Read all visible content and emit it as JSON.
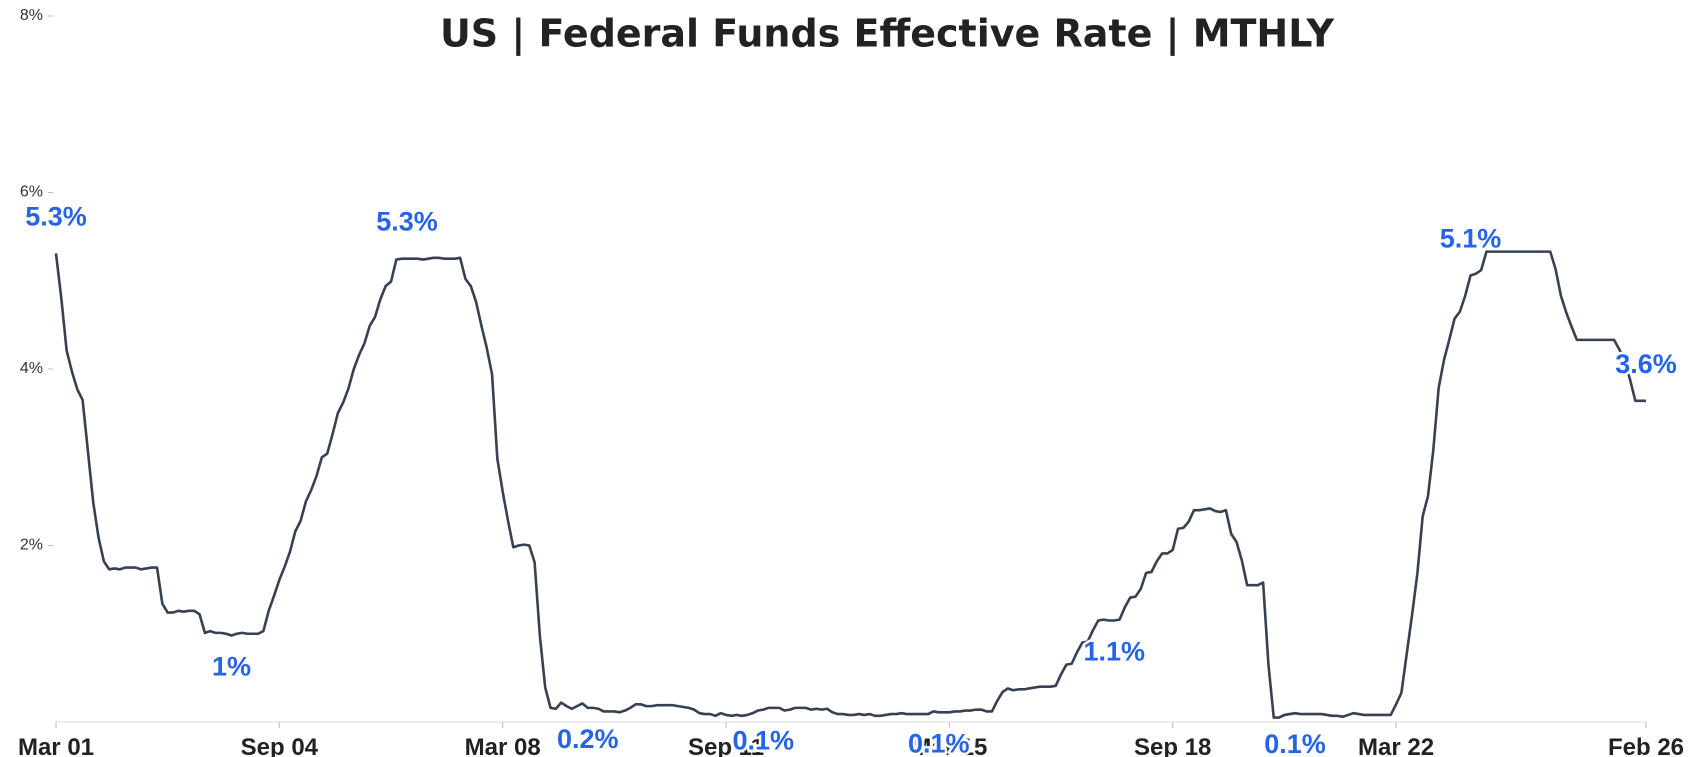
{
  "chart_data": {
    "type": "line",
    "title": "US | Federal Funds Effective Rate | MTHLY",
    "x": [
      "2001-03",
      "2001-04",
      "2001-05",
      "2001-06",
      "2001-07",
      "2001-08",
      "2001-09",
      "2001-10",
      "2001-11",
      "2001-12",
      "2002-01",
      "2002-02",
      "2002-03",
      "2002-04",
      "2002-05",
      "2002-06",
      "2002-07",
      "2002-08",
      "2002-09",
      "2002-10",
      "2002-11",
      "2002-12",
      "2003-01",
      "2003-02",
      "2003-03",
      "2003-04",
      "2003-05",
      "2003-06",
      "2003-07",
      "2003-08",
      "2003-09",
      "2003-10",
      "2003-11",
      "2003-12",
      "2004-01",
      "2004-02",
      "2004-03",
      "2004-04",
      "2004-05",
      "2004-06",
      "2004-07",
      "2004-08",
      "2004-09",
      "2004-10",
      "2004-11",
      "2004-12",
      "2005-01",
      "2005-02",
      "2005-03",
      "2005-04",
      "2005-05",
      "2005-06",
      "2005-07",
      "2005-08",
      "2005-09",
      "2005-10",
      "2005-11",
      "2005-12",
      "2006-01",
      "2006-02",
      "2006-03",
      "2006-04",
      "2006-05",
      "2006-06",
      "2006-07",
      "2006-08",
      "2006-09",
      "2006-10",
      "2006-11",
      "2006-12",
      "2007-01",
      "2007-02",
      "2007-03",
      "2007-04",
      "2007-05",
      "2007-06",
      "2007-07",
      "2007-08",
      "2007-09",
      "2007-10",
      "2007-11",
      "2007-12",
      "2008-01",
      "2008-02",
      "2008-03",
      "2008-04",
      "2008-05",
      "2008-06",
      "2008-07",
      "2008-08",
      "2008-09",
      "2008-10",
      "2008-11",
      "2008-12",
      "2009-01",
      "2009-02",
      "2009-03",
      "2009-04",
      "2009-05",
      "2009-06",
      "2009-07",
      "2009-08",
      "2009-09",
      "2009-10",
      "2009-11",
      "2009-12",
      "2010-01",
      "2010-02",
      "2010-03",
      "2010-04",
      "2010-05",
      "2010-06",
      "2010-07",
      "2010-08",
      "2010-09",
      "2010-10",
      "2010-11",
      "2010-12",
      "2011-01",
      "2011-02",
      "2011-03",
      "2011-04",
      "2011-05",
      "2011-06",
      "2011-07",
      "2011-08",
      "2011-09",
      "2011-10",
      "2011-11",
      "2011-12",
      "2012-01",
      "2012-02",
      "2012-03",
      "2012-04",
      "2012-05",
      "2012-06",
      "2012-07",
      "2012-08",
      "2012-09",
      "2012-10",
      "2012-11",
      "2012-12",
      "2013-01",
      "2013-02",
      "2013-03",
      "2013-04",
      "2013-05",
      "2013-06",
      "2013-07",
      "2013-08",
      "2013-09",
      "2013-10",
      "2013-11",
      "2013-12",
      "2014-01",
      "2014-02",
      "2014-03",
      "2014-04",
      "2014-05",
      "2014-06",
      "2014-07",
      "2014-08",
      "2014-09",
      "2014-10",
      "2014-11",
      "2014-12",
      "2015-01",
      "2015-02",
      "2015-03",
      "2015-04",
      "2015-05",
      "2015-06",
      "2015-07",
      "2015-08",
      "2015-09",
      "2015-10",
      "2015-11",
      "2015-12",
      "2016-01",
      "2016-02",
      "2016-03",
      "2016-04",
      "2016-05",
      "2016-06",
      "2016-07",
      "2016-08",
      "2016-09",
      "2016-10",
      "2016-11",
      "2016-12",
      "2017-01",
      "2017-02",
      "2017-03",
      "2017-04",
      "2017-05",
      "2017-06",
      "2017-07",
      "2017-08",
      "2017-09",
      "2017-10",
      "2017-11",
      "2017-12",
      "2018-01",
      "2018-02",
      "2018-03",
      "2018-04",
      "2018-05",
      "2018-06",
      "2018-07",
      "2018-08",
      "2018-09",
      "2018-10",
      "2018-11",
      "2018-12",
      "2019-01",
      "2019-02",
      "2019-03",
      "2019-04",
      "2019-05",
      "2019-06",
      "2019-07",
      "2019-08",
      "2019-09",
      "2019-10",
      "2019-11",
      "2019-12",
      "2020-01",
      "2020-02",
      "2020-03",
      "2020-04",
      "2020-05",
      "2020-06",
      "2020-07",
      "2020-08",
      "2020-09",
      "2020-10",
      "2020-11",
      "2020-12",
      "2021-01",
      "2021-02",
      "2021-03",
      "2021-04",
      "2021-05",
      "2021-06",
      "2021-07",
      "2021-08",
      "2021-09",
      "2021-10",
      "2021-11",
      "2021-12",
      "2022-01",
      "2022-02",
      "2022-03",
      "2022-04",
      "2022-05",
      "2022-06",
      "2022-07",
      "2022-08",
      "2022-09",
      "2022-10",
      "2022-11",
      "2022-12",
      "2023-01",
      "2023-02",
      "2023-03",
      "2023-04",
      "2023-05",
      "2023-06",
      "2023-07",
      "2023-08",
      "2023-09",
      "2023-10",
      "2023-11",
      "2023-12",
      "2024-01",
      "2024-02",
      "2024-03",
      "2024-04",
      "2024-05",
      "2024-06",
      "2024-07",
      "2024-08",
      "2024-09",
      "2024-10",
      "2024-11",
      "2024-12",
      "2025-01",
      "2025-02",
      "2025-03",
      "2025-04",
      "2025-05",
      "2025-06",
      "2025-07",
      "2025-08",
      "2025-09",
      "2025-10",
      "2025-11",
      "2025-12",
      "2026-01",
      "2026-02"
    ],
    "series": [
      {
        "name": "Federal Funds Effective Rate",
        "color": "#374151",
        "values": [
          5.31,
          4.8,
          4.21,
          3.97,
          3.77,
          3.65,
          3.07,
          2.49,
          2.09,
          1.82,
          1.73,
          1.74,
          1.73,
          1.75,
          1.75,
          1.75,
          1.73,
          1.74,
          1.75,
          1.75,
          1.34,
          1.24,
          1.24,
          1.26,
          1.25,
          1.26,
          1.26,
          1.22,
          1.01,
          1.03,
          1.01,
          1.01,
          1.0,
          0.98,
          1.0,
          1.01,
          1.0,
          1.0,
          1.0,
          1.03,
          1.26,
          1.43,
          1.61,
          1.76,
          1.93,
          2.16,
          2.28,
          2.5,
          2.63,
          2.79,
          3.0,
          3.04,
          3.26,
          3.5,
          3.62,
          3.78,
          4.0,
          4.16,
          4.29,
          4.49,
          4.59,
          4.79,
          4.94,
          4.99,
          5.24,
          5.25,
          5.25,
          5.25,
          5.25,
          5.24,
          5.25,
          5.26,
          5.26,
          5.25,
          5.25,
          5.25,
          5.26,
          5.02,
          4.94,
          4.76,
          4.49,
          4.24,
          3.94,
          2.98,
          2.61,
          2.28,
          1.98,
          2.0,
          2.01,
          2.0,
          1.81,
          0.97,
          0.39,
          0.16,
          0.15,
          0.22,
          0.18,
          0.15,
          0.18,
          0.21,
          0.16,
          0.16,
          0.15,
          0.12,
          0.12,
          0.12,
          0.11,
          0.13,
          0.16,
          0.2,
          0.2,
          0.18,
          0.18,
          0.19,
          0.19,
          0.19,
          0.19,
          0.18,
          0.17,
          0.16,
          0.14,
          0.1,
          0.09,
          0.09,
          0.07,
          0.1,
          0.08,
          0.07,
          0.08,
          0.07,
          0.08,
          0.1,
          0.13,
          0.14,
          0.16,
          0.16,
          0.16,
          0.13,
          0.14,
          0.16,
          0.16,
          0.16,
          0.14,
          0.15,
          0.14,
          0.15,
          0.11,
          0.09,
          0.09,
          0.08,
          0.08,
          0.09,
          0.08,
          0.09,
          0.07,
          0.07,
          0.08,
          0.09,
          0.09,
          0.1,
          0.09,
          0.09,
          0.09,
          0.09,
          0.09,
          0.12,
          0.11,
          0.11,
          0.11,
          0.12,
          0.12,
          0.13,
          0.13,
          0.14,
          0.14,
          0.12,
          0.12,
          0.24,
          0.34,
          0.38,
          0.36,
          0.37,
          0.37,
          0.38,
          0.39,
          0.4,
          0.4,
          0.4,
          0.41,
          0.54,
          0.65,
          0.66,
          0.79,
          0.9,
          0.91,
          1.04,
          1.15,
          1.16,
          1.15,
          1.15,
          1.16,
          1.3,
          1.41,
          1.42,
          1.51,
          1.69,
          1.7,
          1.82,
          1.91,
          1.91,
          1.95,
          2.19,
          2.2,
          2.27,
          2.4,
          2.4,
          2.41,
          2.42,
          2.39,
          2.38,
          2.4,
          2.13,
          2.04,
          1.83,
          1.55,
          1.55,
          1.55,
          1.58,
          0.65,
          0.05,
          0.05,
          0.08,
          0.09,
          0.1,
          0.09,
          0.09,
          0.09,
          0.09,
          0.09,
          0.08,
          0.07,
          0.07,
          0.06,
          0.08,
          0.1,
          0.09,
          0.08,
          0.08,
          0.08,
          0.08,
          0.08,
          0.08,
          0.2,
          0.33,
          0.77,
          1.21,
          1.68,
          2.33,
          2.56,
          3.08,
          3.78,
          4.1,
          4.33,
          4.57,
          4.65,
          4.83,
          5.06,
          5.08,
          5.12,
          5.33,
          5.33,
          5.33,
          5.33,
          5.33,
          5.33,
          5.33,
          5.33,
          5.33,
          5.33,
          5.33,
          5.33,
          5.33,
          5.13,
          4.83,
          4.64,
          4.48,
          4.33,
          4.33,
          4.33,
          4.33,
          4.33,
          4.33,
          4.33,
          4.33,
          4.22,
          4.09,
          3.88,
          3.64,
          3.64,
          3.64
        ],
        "value_labels": {
          "0": "5.3%",
          "33": "1%",
          "66": "5.3%",
          "100": "0.2%",
          "133": "0.1%",
          "166": "0.1%",
          "199": "1.1%",
          "233": "0.1%",
          "266": "5.1%",
          "299": "3.6%"
        }
      }
    ],
    "xticks": [
      {
        "value": "2001-03",
        "label": "Mar 01"
      },
      {
        "value": "2004-09",
        "label": "Sep 04"
      },
      {
        "value": "2008-03",
        "label": "Mar 08"
      },
      {
        "value": "2011-09",
        "label": "Sep 11"
      },
      {
        "value": "2015-03",
        "label": "Mar 15"
      },
      {
        "value": "2018-09",
        "label": "Sep 18"
      },
      {
        "value": "2022-03",
        "label": "Mar 22"
      },
      {
        "value": "2026-02",
        "label": "Feb 26"
      }
    ],
    "ylim": [
      0,
      8
    ],
    "yticks": [
      {
        "value": 2,
        "label": "2%"
      },
      {
        "value": 4,
        "label": "4%"
      },
      {
        "value": 6,
        "label": "6%"
      },
      {
        "value": 8,
        "label": "8%"
      }
    ]
  }
}
